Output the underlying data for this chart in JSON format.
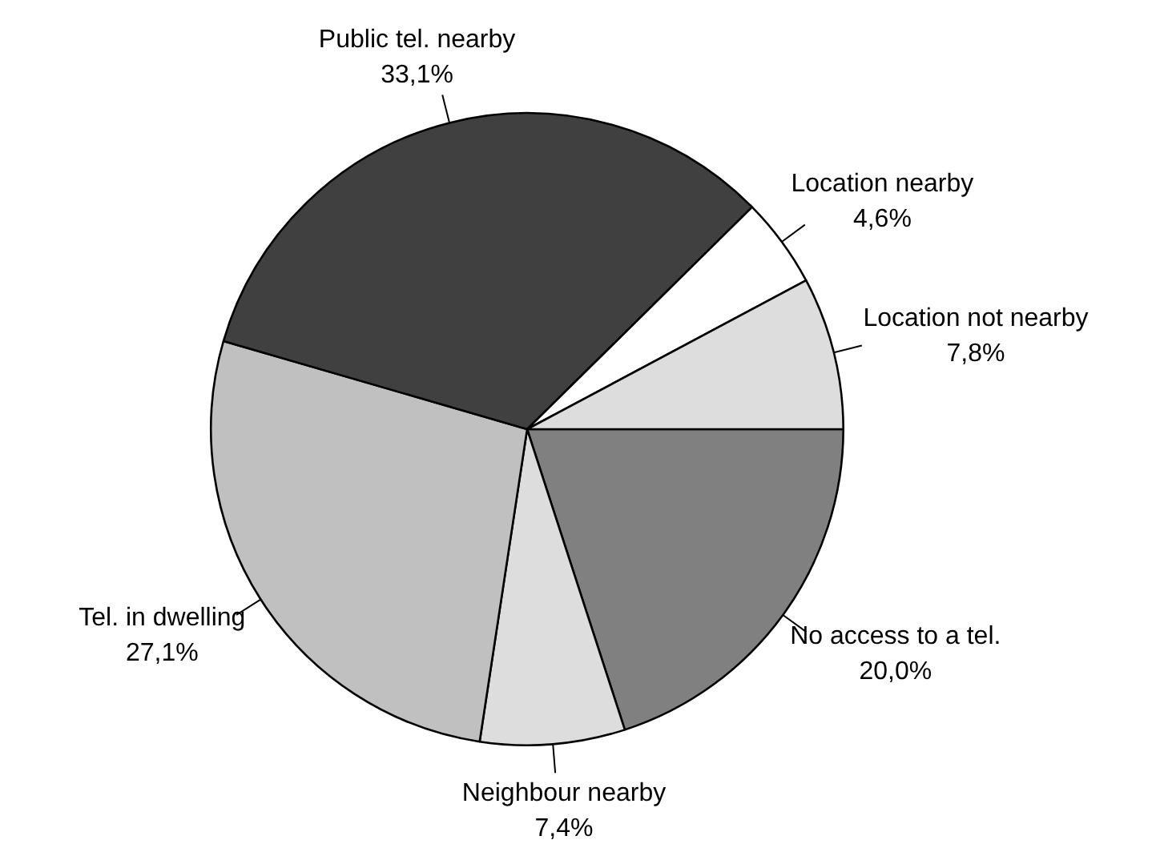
{
  "chart_data": {
    "type": "pie",
    "categories": [
      "No access to a tel.",
      "Neighbour nearby",
      "Tel. in dwelling",
      "Public tel. nearby",
      "Location nearby",
      "Location not nearby"
    ],
    "values": [
      20.0,
      7.4,
      27.1,
      33.1,
      4.6,
      7.8
    ],
    "value_labels": [
      "20,0%",
      "7,4%",
      "27,1%",
      "33,1%",
      "4,6%",
      "7,8%"
    ],
    "colors": [
      "#808080",
      "#dddddd",
      "#c0c0c0",
      "#404040",
      "#ffffff",
      "#dddddd"
    ]
  }
}
